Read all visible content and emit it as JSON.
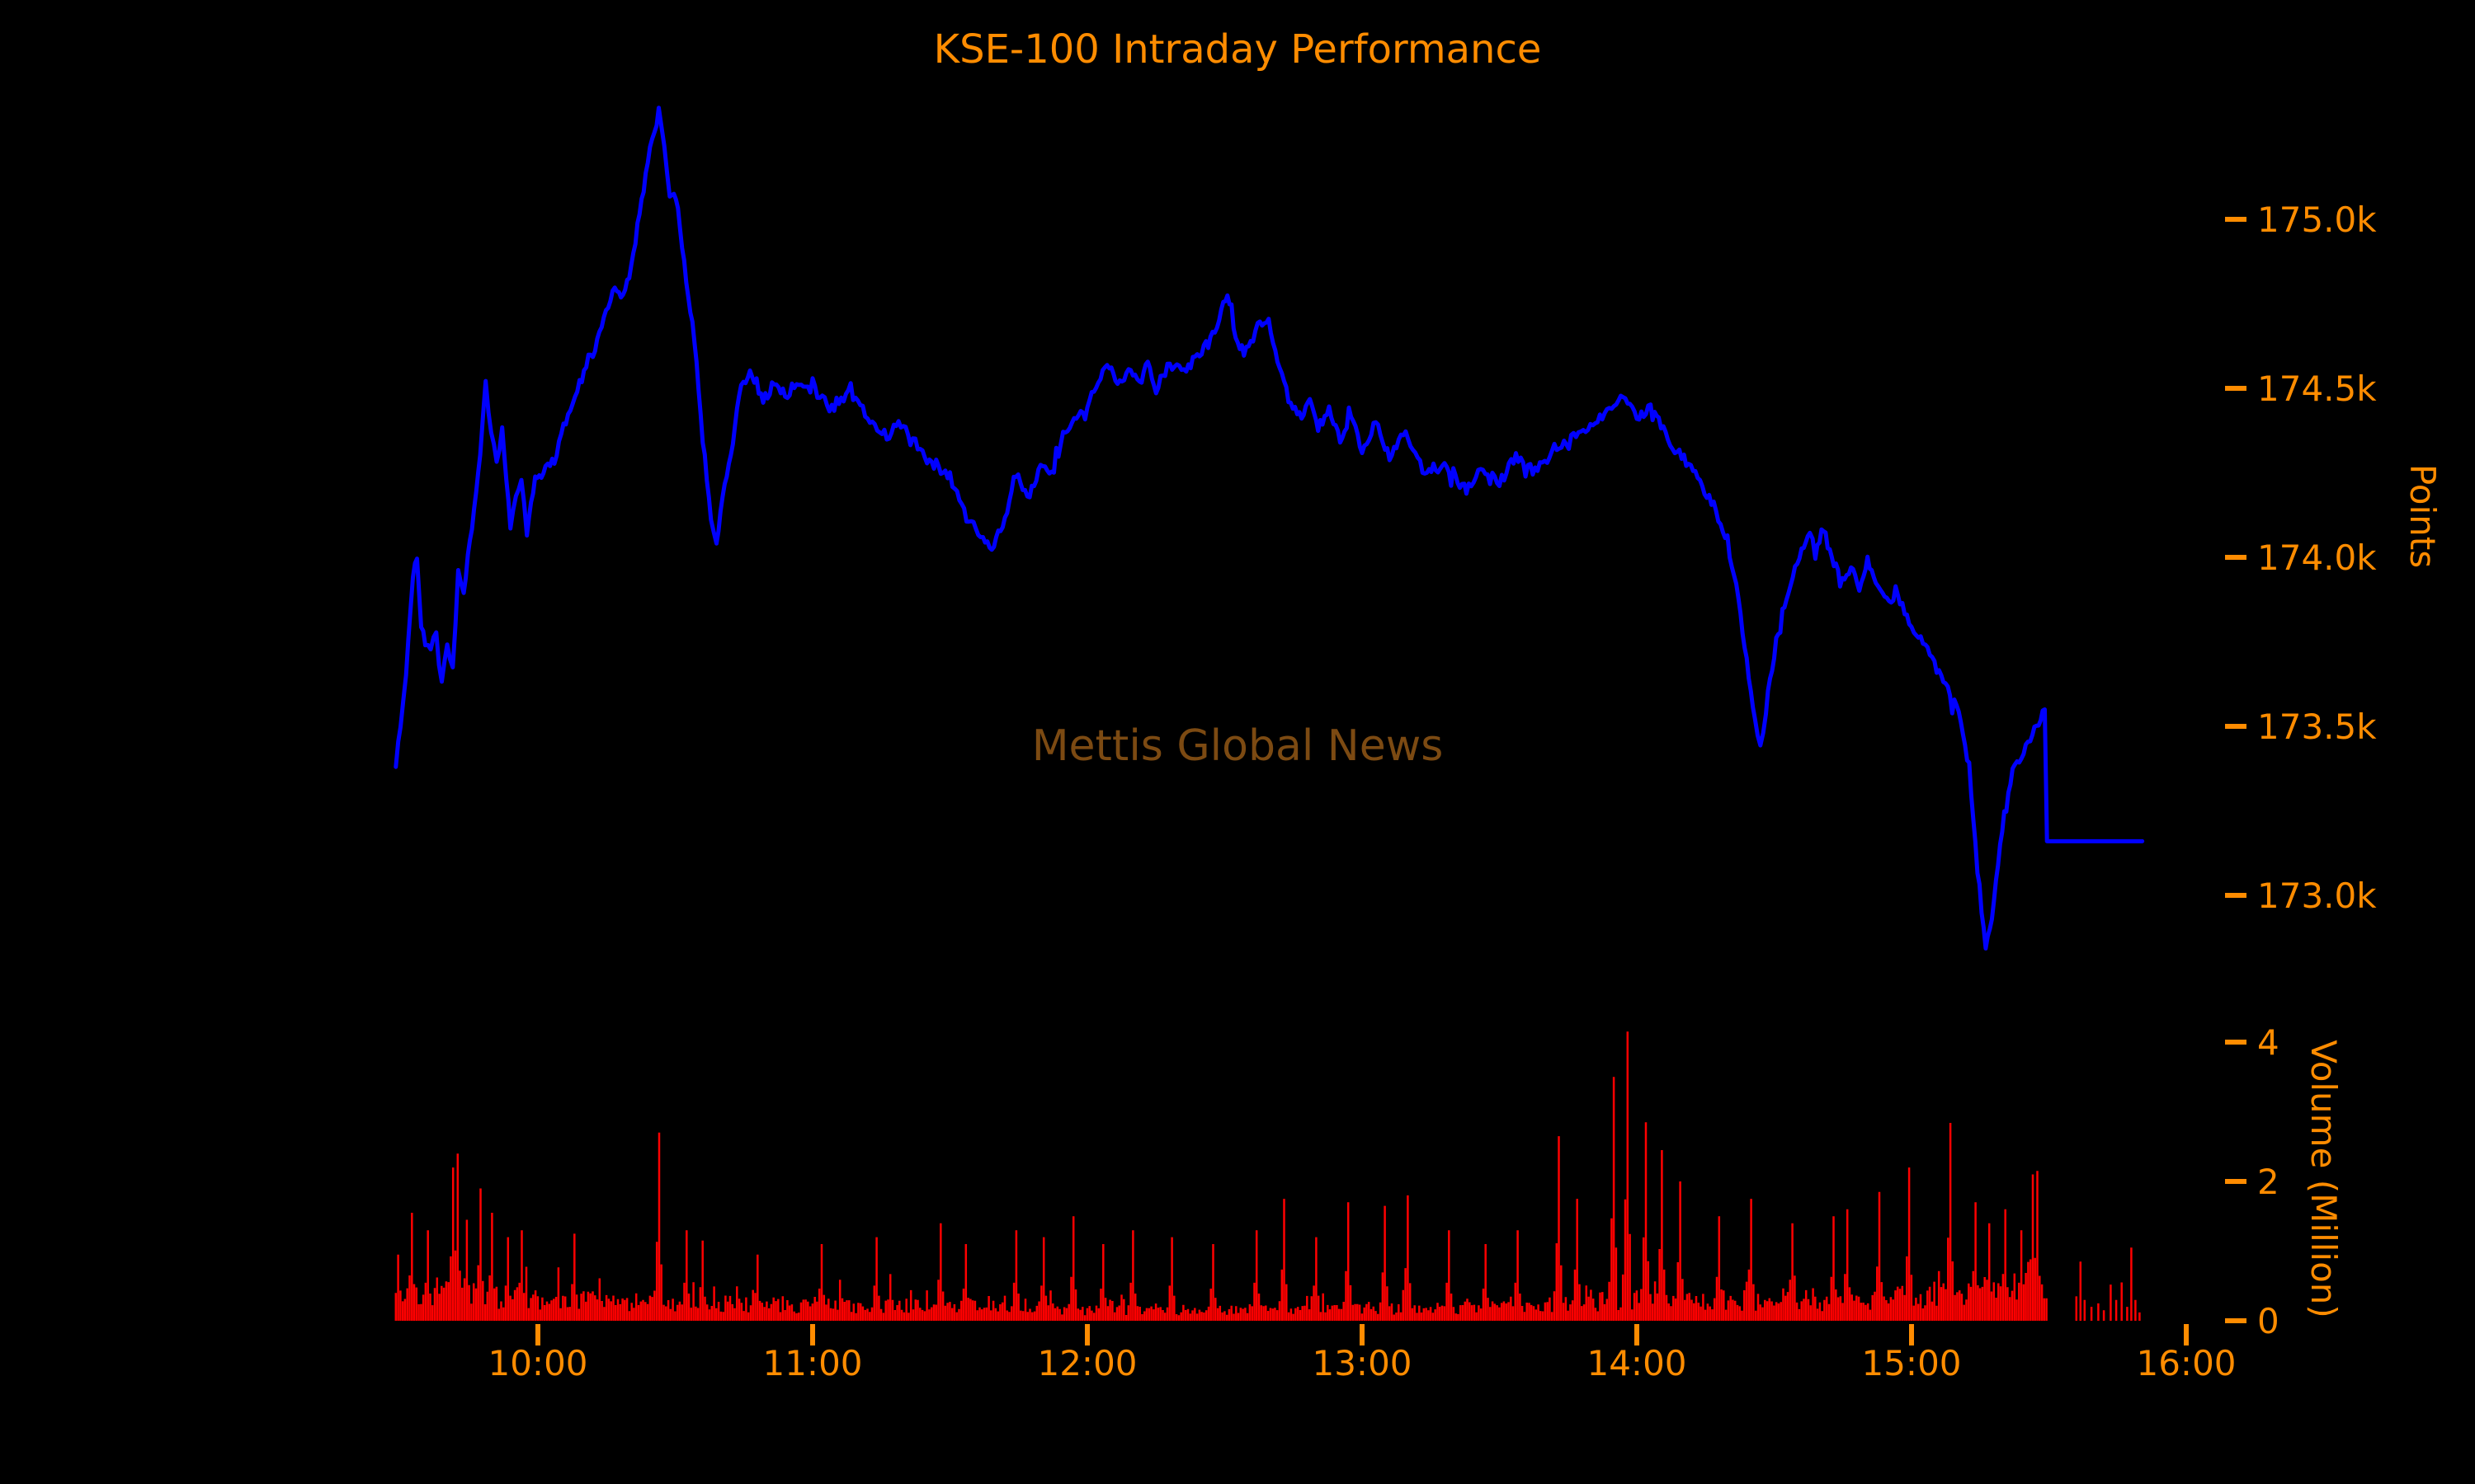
{
  "title": "KSE-100 Intraday Performance",
  "watermark": "Mettis Global News",
  "colors": {
    "background": "#000000",
    "accent": "#FF8C00",
    "price_line": "#0000FF",
    "volume_bar": "#FF0000",
    "watermark": "#7C4A12"
  },
  "price_axis": {
    "label": "Points",
    "ticks": [
      {
        "label": "175.0k",
        "value": 175.0
      },
      {
        "label": "174.5k",
        "value": 174.5
      },
      {
        "label": "174.0k",
        "value": 174.0
      },
      {
        "label": "173.5k",
        "value": 173.5
      },
      {
        "label": "173.0k",
        "value": 173.0
      }
    ]
  },
  "volume_axis": {
    "label": "Volume (Million)",
    "ticks": [
      {
        "label": "4",
        "value": 4
      },
      {
        "label": "2",
        "value": 2
      },
      {
        "label": "0",
        "value": 0
      }
    ]
  },
  "time_axis": {
    "ticks": [
      {
        "label": "10:00",
        "hour": 10
      },
      {
        "label": "11:00",
        "hour": 11
      },
      {
        "label": "12:00",
        "hour": 12
      },
      {
        "label": "13:00",
        "hour": 13
      },
      {
        "label": "14:00",
        "hour": 14
      },
      {
        "label": "15:00",
        "hour": 15
      },
      {
        "label": "16:00",
        "hour": 16
      }
    ]
  },
  "chart_data": {
    "type": "line+bar",
    "title": "KSE-100 Intraday Performance",
    "x_unit": "hour_of_day",
    "x_range_hours": [
      9.3,
      16.1
    ],
    "legend": "none",
    "grid": false,
    "session": {
      "open_hour": 9.483,
      "close_hour": 15.493,
      "flat_close_value_k": 173.16,
      "flat_end_hour": 15.84,
      "day_high_k": 175.32,
      "day_high_hour": 10.44,
      "day_low_k": 172.84,
      "day_low_hour": 15.27
    },
    "price_series": {
      "name": "KSE-100 Index",
      "unit": "index points (thousands)",
      "ylim_k": [
        172.6,
        175.45
      ],
      "anchors_time_value_k": [
        [
          9.483,
          173.39
        ],
        [
          9.5,
          173.5
        ],
        [
          9.52,
          173.65
        ],
        [
          9.545,
          173.95
        ],
        [
          9.56,
          174.01
        ],
        [
          9.575,
          173.8
        ],
        [
          9.59,
          173.75
        ],
        [
          9.61,
          173.72
        ],
        [
          9.63,
          173.78
        ],
        [
          9.65,
          173.64
        ],
        [
          9.67,
          173.74
        ],
        [
          9.69,
          173.66
        ],
        [
          9.71,
          173.97
        ],
        [
          9.73,
          173.9
        ],
        [
          9.76,
          174.1
        ],
        [
          9.79,
          174.3
        ],
        [
          9.81,
          174.51
        ],
        [
          9.83,
          174.36
        ],
        [
          9.85,
          174.28
        ],
        [
          9.87,
          174.38
        ],
        [
          9.9,
          174.1
        ],
        [
          9.92,
          174.18
        ],
        [
          9.94,
          174.23
        ],
        [
          9.96,
          174.08
        ],
        [
          9.99,
          174.24
        ],
        [
          10.02,
          174.25
        ],
        [
          10.06,
          174.29
        ],
        [
          10.11,
          174.43
        ],
        [
          10.16,
          174.53
        ],
        [
          10.2,
          174.6
        ],
        [
          10.24,
          174.72
        ],
        [
          10.28,
          174.8
        ],
        [
          10.31,
          174.77
        ],
        [
          10.34,
          174.85
        ],
        [
          10.37,
          175.02
        ],
        [
          10.4,
          175.17
        ],
        [
          10.44,
          175.32
        ],
        [
          10.46,
          175.22
        ],
        [
          10.48,
          175.08
        ],
        [
          10.51,
          175.04
        ],
        [
          10.54,
          174.82
        ],
        [
          10.57,
          174.65
        ],
        [
          10.6,
          174.35
        ],
        [
          10.63,
          174.12
        ],
        [
          10.65,
          174.04
        ],
        [
          10.68,
          174.22
        ],
        [
          10.71,
          174.35
        ],
        [
          10.74,
          174.51
        ],
        [
          10.78,
          174.55
        ],
        [
          10.82,
          174.46
        ],
        [
          10.86,
          174.52
        ],
        [
          10.9,
          174.48
        ],
        [
          10.95,
          174.52
        ],
        [
          11.0,
          174.5
        ],
        [
          11.07,
          174.44
        ],
        [
          11.13,
          174.48
        ],
        [
          11.2,
          174.42
        ],
        [
          11.27,
          174.36
        ],
        [
          11.33,
          174.4
        ],
        [
          11.4,
          174.3
        ],
        [
          11.45,
          174.27
        ],
        [
          11.5,
          174.24
        ],
        [
          11.56,
          174.12
        ],
        [
          11.62,
          174.06
        ],
        [
          11.66,
          174.03
        ],
        [
          11.7,
          174.12
        ],
        [
          11.74,
          174.25
        ],
        [
          11.79,
          174.18
        ],
        [
          11.83,
          174.28
        ],
        [
          11.87,
          174.24
        ],
        [
          11.92,
          174.38
        ],
        [
          11.96,
          174.42
        ],
        [
          12.0,
          174.45
        ],
        [
          12.04,
          174.52
        ],
        [
          12.08,
          174.57
        ],
        [
          12.11,
          174.5
        ],
        [
          12.15,
          174.55
        ],
        [
          12.19,
          174.52
        ],
        [
          12.22,
          174.57
        ],
        [
          12.25,
          174.5
        ],
        [
          12.3,
          174.57
        ],
        [
          12.36,
          174.55
        ],
        [
          12.4,
          174.6
        ],
        [
          12.44,
          174.63
        ],
        [
          12.48,
          174.7
        ],
        [
          12.51,
          174.78
        ],
        [
          12.54,
          174.66
        ],
        [
          12.57,
          174.6
        ],
        [
          12.62,
          174.68
        ],
        [
          12.66,
          174.7
        ],
        [
          12.7,
          174.55
        ],
        [
          12.74,
          174.45
        ],
        [
          12.78,
          174.42
        ],
        [
          12.81,
          174.47
        ],
        [
          12.84,
          174.38
        ],
        [
          12.88,
          174.44
        ],
        [
          12.92,
          174.34
        ],
        [
          12.96,
          174.42
        ],
        [
          13.0,
          174.32
        ],
        [
          13.05,
          174.4
        ],
        [
          13.1,
          174.3
        ],
        [
          13.15,
          174.36
        ],
        [
          13.22,
          174.26
        ],
        [
          13.3,
          174.28
        ],
        [
          13.38,
          174.2
        ],
        [
          13.44,
          174.26
        ],
        [
          13.5,
          174.22
        ],
        [
          13.56,
          174.3
        ],
        [
          13.63,
          174.25
        ],
        [
          13.7,
          174.32
        ],
        [
          13.77,
          174.36
        ],
        [
          13.84,
          174.4
        ],
        [
          13.9,
          174.44
        ],
        [
          13.95,
          174.47
        ],
        [
          14.0,
          174.41
        ],
        [
          14.05,
          174.45
        ],
        [
          14.08,
          174.4
        ],
        [
          14.13,
          174.33
        ],
        [
          14.18,
          174.28
        ],
        [
          14.23,
          174.22
        ],
        [
          14.28,
          174.15
        ],
        [
          14.33,
          174.04
        ],
        [
          14.37,
          173.88
        ],
        [
          14.4,
          173.7
        ],
        [
          14.43,
          173.52
        ],
        [
          14.45,
          173.43
        ],
        [
          14.47,
          173.55
        ],
        [
          14.5,
          173.72
        ],
        [
          14.53,
          173.85
        ],
        [
          14.56,
          173.92
        ],
        [
          14.6,
          174.02
        ],
        [
          14.63,
          174.08
        ],
        [
          14.65,
          174.0
        ],
        [
          14.68,
          174.09
        ],
        [
          14.71,
          174.0
        ],
        [
          14.74,
          173.94
        ],
        [
          14.78,
          173.96
        ],
        [
          14.81,
          173.92
        ],
        [
          14.84,
          173.99
        ],
        [
          14.87,
          173.94
        ],
        [
          14.91,
          173.88
        ],
        [
          14.95,
          173.88
        ],
        [
          15.0,
          173.8
        ],
        [
          15.05,
          173.74
        ],
        [
          15.1,
          173.66
        ],
        [
          15.14,
          173.6
        ],
        [
          15.18,
          173.52
        ],
        [
          15.21,
          173.38
        ],
        [
          15.24,
          173.08
        ],
        [
          15.27,
          172.84
        ],
        [
          15.3,
          172.98
        ],
        [
          15.33,
          173.2
        ],
        [
          15.36,
          173.34
        ],
        [
          15.4,
          173.42
        ],
        [
          15.44,
          173.48
        ],
        [
          15.47,
          173.53
        ],
        [
          15.485,
          173.55
        ],
        [
          15.493,
          173.16
        ],
        [
          15.84,
          173.16
        ]
      ]
    },
    "volume_series": {
      "name": "Volume",
      "unit": "million shares per interval",
      "ylim_m": [
        0,
        4.3
      ],
      "spikes_time_value_m": [
        [
          9.49,
          0.95
        ],
        [
          9.54,
          1.55
        ],
        [
          9.6,
          1.3
        ],
        [
          9.69,
          2.2
        ],
        [
          9.71,
          2.4
        ],
        [
          9.74,
          1.45
        ],
        [
          9.79,
          1.9
        ],
        [
          9.835,
          1.55
        ],
        [
          9.89,
          1.2
        ],
        [
          9.94,
          1.3
        ],
        [
          10.13,
          1.25
        ],
        [
          10.44,
          2.7
        ],
        [
          10.54,
          1.3
        ],
        [
          10.6,
          1.15
        ],
        [
          10.8,
          0.95
        ],
        [
          11.03,
          1.1
        ],
        [
          11.23,
          1.2
        ],
        [
          11.47,
          1.4
        ],
        [
          11.56,
          1.1
        ],
        [
          11.74,
          1.3
        ],
        [
          11.84,
          1.2
        ],
        [
          11.95,
          1.5
        ],
        [
          12.06,
          1.1
        ],
        [
          12.17,
          1.3
        ],
        [
          12.31,
          1.2
        ],
        [
          12.46,
          1.1
        ],
        [
          12.62,
          1.3
        ],
        [
          12.72,
          1.75
        ],
        [
          12.83,
          1.2
        ],
        [
          12.95,
          1.7
        ],
        [
          13.08,
          1.65
        ],
        [
          13.17,
          1.8
        ],
        [
          13.32,
          1.3
        ],
        [
          13.45,
          1.1
        ],
        [
          13.57,
          1.3
        ],
        [
          13.72,
          2.65
        ],
        [
          13.78,
          1.75
        ],
        [
          13.92,
          3.5
        ],
        [
          13.97,
          4.15
        ],
        [
          14.03,
          2.85
        ],
        [
          14.09,
          2.45
        ],
        [
          14.16,
          2.0
        ],
        [
          14.3,
          1.5
        ],
        [
          14.42,
          1.75
        ],
        [
          14.57,
          1.4
        ],
        [
          14.72,
          1.5
        ],
        [
          14.77,
          1.6
        ],
        [
          14.88,
          1.85
        ],
        [
          14.99,
          2.2
        ],
        [
          15.14,
          2.84
        ],
        [
          15.23,
          1.7
        ],
        [
          15.28,
          1.4
        ],
        [
          15.34,
          1.6
        ],
        [
          15.4,
          1.3
        ],
        [
          15.44,
          2.1
        ],
        [
          15.46,
          2.15
        ],
        [
          15.5,
          2.4
        ]
      ],
      "base_envelope_time_value_m": [
        [
          9.48,
          0.5
        ],
        [
          9.6,
          0.55
        ],
        [
          9.8,
          0.5
        ],
        [
          10.0,
          0.42
        ],
        [
          10.3,
          0.38
        ],
        [
          10.6,
          0.35
        ],
        [
          11.0,
          0.3
        ],
        [
          11.5,
          0.28
        ],
        [
          12.0,
          0.22
        ],
        [
          12.5,
          0.2
        ],
        [
          13.0,
          0.22
        ],
        [
          13.5,
          0.26
        ],
        [
          13.8,
          0.34
        ],
        [
          14.0,
          0.4
        ],
        [
          14.3,
          0.36
        ],
        [
          14.6,
          0.38
        ],
        [
          15.0,
          0.42
        ],
        [
          15.2,
          0.55
        ],
        [
          15.35,
          0.65
        ],
        [
          15.5,
          0.6
        ]
      ],
      "late_bars_time_value_m": [
        [
          15.6,
          0.35
        ],
        [
          15.615,
          0.85
        ],
        [
          15.63,
          0.3
        ],
        [
          15.655,
          0.2
        ],
        [
          15.68,
          0.25
        ],
        [
          15.7,
          0.15
        ],
        [
          15.725,
          0.52
        ],
        [
          15.745,
          0.3
        ],
        [
          15.765,
          0.55
        ],
        [
          15.785,
          0.2
        ],
        [
          15.8,
          1.05
        ],
        [
          15.815,
          0.3
        ],
        [
          15.83,
          0.12
        ]
      ]
    }
  }
}
